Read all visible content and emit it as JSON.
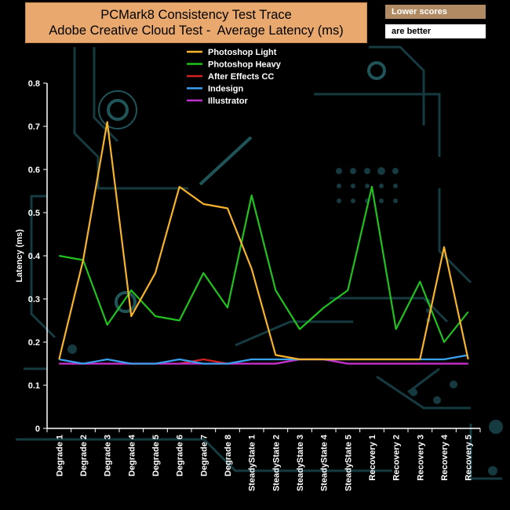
{
  "title_lines": [
    "PCMark8 Consistency Test Trace",
    "Adobe Creative Cloud Test -  Average Latency (ms)"
  ],
  "notes": [
    "Lower scores",
    "are better"
  ],
  "colors": {
    "background": "#000000",
    "circuit": "#153a40",
    "circuit_light": "#1f5459",
    "axis": "#ffffff"
  },
  "chart_data": {
    "type": "line",
    "title": "PCMark8 Consistency Test Trace\nAdobe Creative Cloud Test -  Average Latency (ms)",
    "xlabel": "",
    "ylabel": "Latency (ms)",
    "ylim": [
      0,
      0.8
    ],
    "yticks": [
      0,
      0.1,
      0.2,
      0.3,
      0.4,
      0.5,
      0.6,
      0.7,
      0.8
    ],
    "ytick_labels": [
      "0",
      "0.1",
      "0.2",
      "0.3",
      "0.4",
      "0.5",
      "0.6",
      "0.7",
      "0.8"
    ],
    "grid": false,
    "legend_position": "top-center",
    "categories": [
      "Degrade 1",
      "Degrade 2",
      "Degrade 3",
      "Degrade 4",
      "Degrade 5",
      "Degrade 6",
      "Degrade 7",
      "Degrade 8",
      "SteadyState 1",
      "SteadyState 2",
      "SteadyState 3",
      "SteadyState 4",
      "SteadyState 5",
      "Recovery 1",
      "Recovery 2",
      "Recovery 3",
      "Recovery 4",
      "Recovery 5"
    ],
    "series": [
      {
        "name": "Photoshop Light",
        "color": "#F7B32B",
        "values": [
          0.16,
          0.39,
          0.71,
          0.26,
          0.36,
          0.56,
          0.52,
          0.51,
          0.37,
          0.17,
          0.16,
          0.16,
          0.16,
          0.16,
          0.16,
          0.16,
          0.42,
          0.16
        ]
      },
      {
        "name": " Photoshop Heavy",
        "color": "#22C21E",
        "values": [
          0.4,
          0.39,
          0.24,
          0.32,
          0.26,
          0.25,
          0.36,
          0.28,
          0.54,
          0.32,
          0.23,
          0.28,
          0.32,
          0.56,
          0.23,
          0.34,
          0.2,
          0.27
        ]
      },
      {
        "name": "After Effects CC",
        "color": "#D42020",
        "values": [
          0.15,
          0.15,
          0.15,
          0.15,
          0.15,
          0.15,
          0.16,
          0.15,
          0.15,
          0.15,
          0.16,
          0.16,
          0.15,
          0.15,
          0.15,
          0.15,
          0.15,
          0.15
        ]
      },
      {
        "name": "Indesign",
        "color": "#3AA0F0",
        "values": [
          0.16,
          0.15,
          0.16,
          0.15,
          0.15,
          0.16,
          0.15,
          0.15,
          0.16,
          0.16,
          0.16,
          0.16,
          0.16,
          0.16,
          0.16,
          0.16,
          0.16,
          0.17
        ]
      },
      {
        "name": "Illustrator",
        "color": "#C030D0",
        "values": [
          0.15,
          0.15,
          0.15,
          0.15,
          0.15,
          0.15,
          0.15,
          0.15,
          0.15,
          0.15,
          0.16,
          0.16,
          0.15,
          0.15,
          0.15,
          0.15,
          0.15,
          0.15
        ]
      }
    ]
  }
}
